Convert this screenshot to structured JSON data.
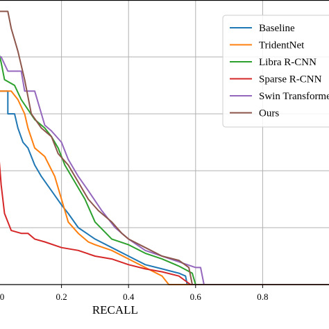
{
  "chart_data": {
    "type": "line",
    "title": "",
    "xlabel": "RECALL",
    "ylabel": "",
    "xlim": [
      0.0,
      1.0
    ],
    "ylim": [
      0.0,
      1.0
    ],
    "x_tick_labels": [
      "0",
      "0.2",
      "0.4",
      "0.6",
      "0.8"
    ],
    "x_ticks": [
      0.0,
      0.2,
      0.4,
      0.6,
      0.8
    ],
    "y_grid": [
      0.2,
      0.4,
      0.6,
      0.8,
      1.0
    ],
    "grid": true,
    "legend_position": "top-right",
    "series": [
      {
        "name": "Baseline",
        "color": "#1f77b4",
        "points": [
          [
            0.0,
            0.75
          ],
          [
            0.005,
            0.75
          ],
          [
            0.005,
            0.68
          ],
          [
            0.04,
            0.68
          ],
          [
            0.04,
            0.6
          ],
          [
            0.06,
            0.6
          ],
          [
            0.07,
            0.55
          ],
          [
            0.085,
            0.5
          ],
          [
            0.1,
            0.48
          ],
          [
            0.12,
            0.42
          ],
          [
            0.14,
            0.38
          ],
          [
            0.17,
            0.33
          ],
          [
            0.2,
            0.28
          ],
          [
            0.22,
            0.25
          ],
          [
            0.25,
            0.2
          ],
          [
            0.3,
            0.16
          ],
          [
            0.35,
            0.13
          ],
          [
            0.4,
            0.1
          ],
          [
            0.45,
            0.07
          ],
          [
            0.5,
            0.055
          ],
          [
            0.55,
            0.04
          ],
          [
            0.57,
            0.03
          ],
          [
            0.575,
            0.0
          ]
        ]
      },
      {
        "name": "TridentNet",
        "color": "#ff7f0e",
        "points": [
          [
            0.0,
            0.72
          ],
          [
            0.01,
            0.72
          ],
          [
            0.01,
            0.68
          ],
          [
            0.05,
            0.68
          ],
          [
            0.07,
            0.65
          ],
          [
            0.09,
            0.6
          ],
          [
            0.1,
            0.55
          ],
          [
            0.12,
            0.48
          ],
          [
            0.15,
            0.45
          ],
          [
            0.18,
            0.38
          ],
          [
            0.2,
            0.3
          ],
          [
            0.22,
            0.22
          ],
          [
            0.25,
            0.18
          ],
          [
            0.28,
            0.15
          ],
          [
            0.3,
            0.14
          ],
          [
            0.35,
            0.12
          ],
          [
            0.4,
            0.09
          ],
          [
            0.45,
            0.06
          ],
          [
            0.5,
            0.03
          ],
          [
            0.52,
            0.0
          ]
        ]
      },
      {
        "name": "Libra R-CNN",
        "color": "#2ca02c",
        "points": [
          [
            0.0,
            0.88
          ],
          [
            0.005,
            0.88
          ],
          [
            0.01,
            0.83
          ],
          [
            0.02,
            0.78
          ],
          [
            0.03,
            0.72
          ],
          [
            0.06,
            0.7
          ],
          [
            0.08,
            0.65
          ],
          [
            0.12,
            0.58
          ],
          [
            0.15,
            0.55
          ],
          [
            0.17,
            0.52
          ],
          [
            0.19,
            0.48
          ],
          [
            0.21,
            0.42
          ],
          [
            0.24,
            0.36
          ],
          [
            0.27,
            0.3
          ],
          [
            0.3,
            0.22
          ],
          [
            0.35,
            0.16
          ],
          [
            0.4,
            0.14
          ],
          [
            0.45,
            0.11
          ],
          [
            0.5,
            0.09
          ],
          [
            0.55,
            0.065
          ],
          [
            0.59,
            0.04
          ],
          [
            0.6,
            0.0
          ]
        ]
      },
      {
        "name": "Sparse R-CNN",
        "color": "#d62728",
        "points": [
          [
            0.0,
            0.76
          ],
          [
            0.004,
            0.6
          ],
          [
            0.01,
            0.5
          ],
          [
            0.02,
            0.35
          ],
          [
            0.03,
            0.25
          ],
          [
            0.05,
            0.19
          ],
          [
            0.08,
            0.18
          ],
          [
            0.1,
            0.18
          ],
          [
            0.12,
            0.16
          ],
          [
            0.15,
            0.15
          ],
          [
            0.2,
            0.13
          ],
          [
            0.25,
            0.12
          ],
          [
            0.3,
            0.1
          ],
          [
            0.35,
            0.09
          ],
          [
            0.4,
            0.07
          ],
          [
            0.45,
            0.055
          ],
          [
            0.5,
            0.045
          ],
          [
            0.55,
            0.03
          ],
          [
            0.585,
            0.0
          ]
        ]
      },
      {
        "name": "Swin Transformer",
        "color": "#9467bd",
        "points": [
          [
            0.0,
            0.8
          ],
          [
            0.02,
            0.8
          ],
          [
            0.04,
            0.75
          ],
          [
            0.08,
            0.75
          ],
          [
            0.09,
            0.68
          ],
          [
            0.12,
            0.68
          ],
          [
            0.15,
            0.56
          ],
          [
            0.17,
            0.54
          ],
          [
            0.2,
            0.5
          ],
          [
            0.22,
            0.44
          ],
          [
            0.25,
            0.38
          ],
          [
            0.28,
            0.33
          ],
          [
            0.32,
            0.26
          ],
          [
            0.36,
            0.2
          ],
          [
            0.4,
            0.16
          ],
          [
            0.45,
            0.12
          ],
          [
            0.5,
            0.1
          ],
          [
            0.55,
            0.08
          ],
          [
            0.6,
            0.06
          ],
          [
            0.615,
            0.06
          ],
          [
            0.625,
            0.0
          ]
        ]
      },
      {
        "name": "Ours",
        "color": "#8c564b",
        "points": [
          [
            0.0,
            0.96
          ],
          [
            0.04,
            0.96
          ],
          [
            0.05,
            0.9
          ],
          [
            0.07,
            0.82
          ],
          [
            0.09,
            0.72
          ],
          [
            0.11,
            0.6
          ],
          [
            0.14,
            0.55
          ],
          [
            0.17,
            0.52
          ],
          [
            0.19,
            0.46
          ],
          [
            0.22,
            0.42
          ],
          [
            0.25,
            0.36
          ],
          [
            0.28,
            0.3
          ],
          [
            0.31,
            0.26
          ],
          [
            0.35,
            0.22
          ],
          [
            0.38,
            0.18
          ],
          [
            0.4,
            0.16
          ],
          [
            0.45,
            0.13
          ],
          [
            0.5,
            0.1
          ],
          [
            0.55,
            0.085
          ],
          [
            0.58,
            0.06
          ],
          [
            0.59,
            0.0
          ]
        ]
      }
    ],
    "baseline_after_end": 0.0
  }
}
